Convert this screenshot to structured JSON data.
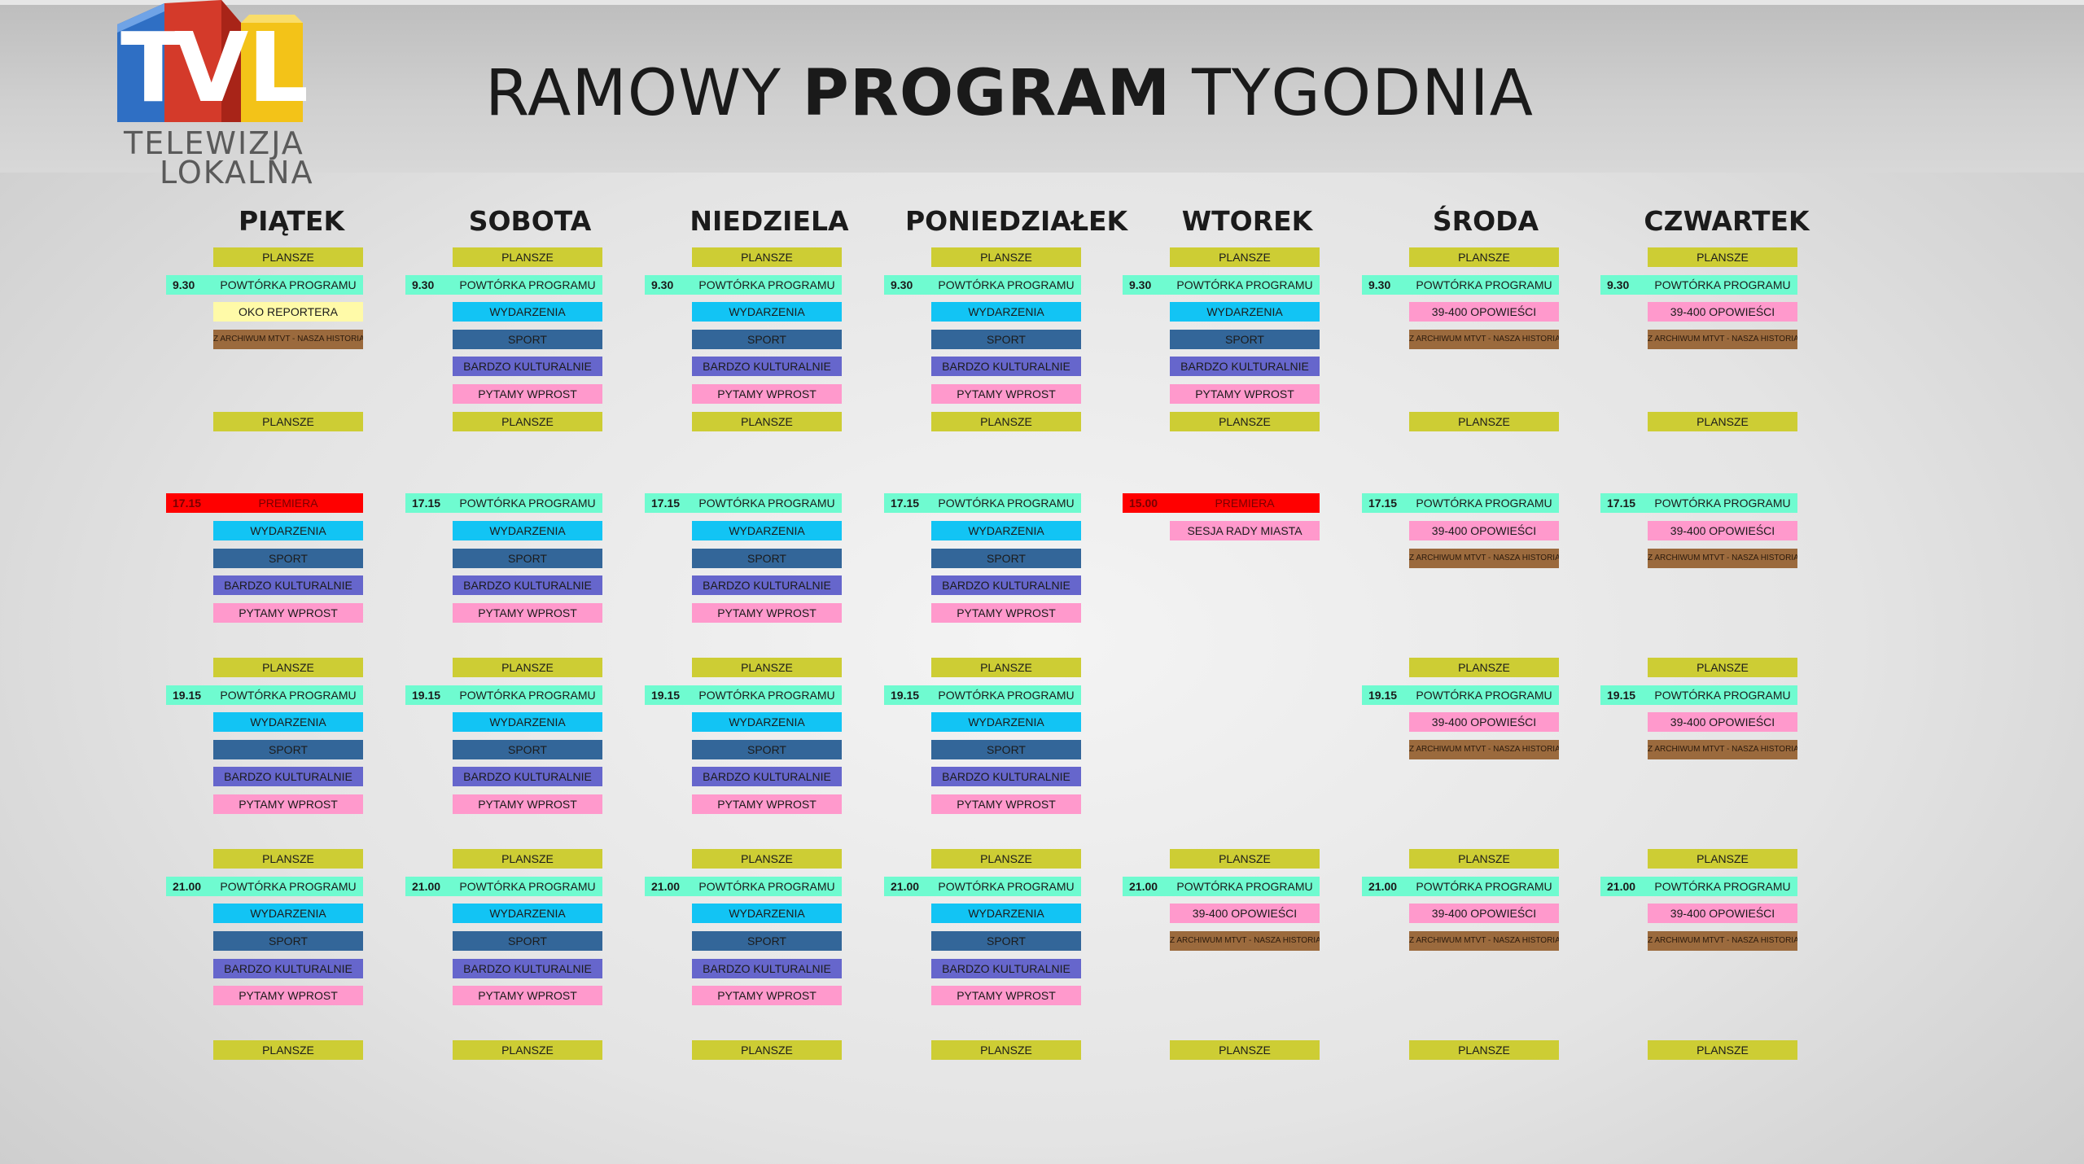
{
  "logo": {
    "letters": "TVL",
    "line1": "TELEWIZJA",
    "line2": "LOKALNA"
  },
  "title": {
    "normal1": "RAMOWY",
    "bold": "PROGRAM",
    "normal2": "TYGODNIA"
  },
  "colors": {
    "plansze": "#cdcd34",
    "powtorka": "#6ffbd0",
    "oko": "#fffaa8",
    "archiwum": "#9b6a3d",
    "wydarzenia": "#12c4f4",
    "sport": "#336699",
    "kulturalnie": "#6666cc",
    "wprost": "#ff99cc",
    "opowiesci": "#ff99cc",
    "premiera": "#ff0000",
    "sesja": "#ff99cc"
  },
  "days": [
    {
      "name": "PIĄTEK",
      "blocks": [
        {
          "row": 0,
          "text": "PLANSZE",
          "type": "plansze"
        },
        {
          "row": 1,
          "time": "9.30",
          "text": "POWTÓRKA  PROGRAMU",
          "type": "powtorka"
        },
        {
          "row": 2,
          "text": "OKO REPORTERA",
          "type": "oko"
        },
        {
          "row": 3,
          "text": "Z ARCHIWUM MTVT - NASZA HISTORIA",
          "type": "archiwum",
          "small": true
        },
        {
          "row": 6,
          "text": "PLANSZE",
          "type": "plansze"
        },
        {
          "row": 9,
          "time": "17.15",
          "text": "PREMIERA",
          "type": "premiera"
        },
        {
          "row": 10,
          "text": "WYDARZENIA",
          "type": "wydarzenia"
        },
        {
          "row": 11,
          "text": "SPORT",
          "type": "sport"
        },
        {
          "row": 12,
          "text": "BARDZO KULTURALNIE",
          "type": "kulturalnie"
        },
        {
          "row": 13,
          "text": "PYTAMY WPROST",
          "type": "wprost"
        },
        {
          "row": 15,
          "text": "PLANSZE",
          "type": "plansze"
        },
        {
          "row": 16,
          "time": "19.15",
          "text": "POWTÓRKA  PROGRAMU",
          "type": "powtorka"
        },
        {
          "row": 17,
          "text": "WYDARZENIA",
          "type": "wydarzenia"
        },
        {
          "row": 18,
          "text": "SPORT",
          "type": "sport"
        },
        {
          "row": 19,
          "text": "BARDZO KULTURALNIE",
          "type": "kulturalnie"
        },
        {
          "row": 20,
          "text": "PYTAMY WPROST",
          "type": "wprost"
        },
        {
          "row": 22,
          "text": "PLANSZE",
          "type": "plansze"
        },
        {
          "row": 23,
          "time": "21.00",
          "text": "POWTÓRKA  PROGRAMU",
          "type": "powtorka"
        },
        {
          "row": 24,
          "text": "WYDARZENIA",
          "type": "wydarzenia"
        },
        {
          "row": 25,
          "text": "SPORT",
          "type": "sport"
        },
        {
          "row": 26,
          "text": "BARDZO KULTURALNIE",
          "type": "kulturalnie"
        },
        {
          "row": 27,
          "text": "PYTAMY WPROST",
          "type": "wprost"
        },
        {
          "row": 29,
          "text": "PLANSZE",
          "type": "plansze"
        }
      ]
    },
    {
      "name": "SOBOTA",
      "blocks": [
        {
          "row": 0,
          "text": "PLANSZE",
          "type": "plansze"
        },
        {
          "row": 1,
          "time": "9.30",
          "text": "POWTÓRKA  PROGRAMU",
          "type": "powtorka"
        },
        {
          "row": 2,
          "text": "WYDARZENIA",
          "type": "wydarzenia"
        },
        {
          "row": 3,
          "text": "SPORT",
          "type": "sport"
        },
        {
          "row": 4,
          "text": "BARDZO KULTURALNIE",
          "type": "kulturalnie"
        },
        {
          "row": 5,
          "text": "PYTAMY WPROST",
          "type": "wprost"
        },
        {
          "row": 6,
          "text": "PLANSZE",
          "type": "plansze"
        },
        {
          "row": 9,
          "time": "17.15",
          "text": "POWTÓRKA  PROGRAMU",
          "type": "powtorka"
        },
        {
          "row": 10,
          "text": "WYDARZENIA",
          "type": "wydarzenia"
        },
        {
          "row": 11,
          "text": "SPORT",
          "type": "sport"
        },
        {
          "row": 12,
          "text": "BARDZO KULTURALNIE",
          "type": "kulturalnie"
        },
        {
          "row": 13,
          "text": "PYTAMY WPROST",
          "type": "wprost"
        },
        {
          "row": 15,
          "text": "PLANSZE",
          "type": "plansze"
        },
        {
          "row": 16,
          "time": "19.15",
          "text": "POWTÓRKA  PROGRAMU",
          "type": "powtorka"
        },
        {
          "row": 17,
          "text": "WYDARZENIA",
          "type": "wydarzenia"
        },
        {
          "row": 18,
          "text": "SPORT",
          "type": "sport"
        },
        {
          "row": 19,
          "text": "BARDZO KULTURALNIE",
          "type": "kulturalnie"
        },
        {
          "row": 20,
          "text": "PYTAMY WPROST",
          "type": "wprost"
        },
        {
          "row": 22,
          "text": "PLANSZE",
          "type": "plansze"
        },
        {
          "row": 23,
          "time": "21.00",
          "text": "POWTÓRKA  PROGRAMU",
          "type": "powtorka"
        },
        {
          "row": 24,
          "text": "WYDARZENIA",
          "type": "wydarzenia"
        },
        {
          "row": 25,
          "text": "SPORT",
          "type": "sport"
        },
        {
          "row": 26,
          "text": "BARDZO KULTURALNIE",
          "type": "kulturalnie"
        },
        {
          "row": 27,
          "text": "PYTAMY WPROST",
          "type": "wprost"
        },
        {
          "row": 29,
          "text": "PLANSZE",
          "type": "plansze"
        }
      ]
    },
    {
      "name": "NIEDZIELA",
      "blocks": [
        {
          "row": 0,
          "text": "PLANSZE",
          "type": "plansze"
        },
        {
          "row": 1,
          "time": "9.30",
          "text": "POWTÓRKA  PROGRAMU",
          "type": "powtorka"
        },
        {
          "row": 2,
          "text": "WYDARZENIA",
          "type": "wydarzenia"
        },
        {
          "row": 3,
          "text": "SPORT",
          "type": "sport"
        },
        {
          "row": 4,
          "text": "BARDZO KULTURALNIE",
          "type": "kulturalnie"
        },
        {
          "row": 5,
          "text": "PYTAMY WPROST",
          "type": "wprost"
        },
        {
          "row": 6,
          "text": "PLANSZE",
          "type": "plansze"
        },
        {
          "row": 9,
          "time": "17.15",
          "text": "POWTÓRKA  PROGRAMU",
          "type": "powtorka"
        },
        {
          "row": 10,
          "text": "WYDARZENIA",
          "type": "wydarzenia"
        },
        {
          "row": 11,
          "text": "SPORT",
          "type": "sport"
        },
        {
          "row": 12,
          "text": "BARDZO KULTURALNIE",
          "type": "kulturalnie"
        },
        {
          "row": 13,
          "text": "PYTAMY WPROST",
          "type": "wprost"
        },
        {
          "row": 15,
          "text": "PLANSZE",
          "type": "plansze"
        },
        {
          "row": 16,
          "time": "19.15",
          "text": "POWTÓRKA  PROGRAMU",
          "type": "powtorka"
        },
        {
          "row": 17,
          "text": "WYDARZENIA",
          "type": "wydarzenia"
        },
        {
          "row": 18,
          "text": "SPORT",
          "type": "sport"
        },
        {
          "row": 19,
          "text": "BARDZO KULTURALNIE",
          "type": "kulturalnie"
        },
        {
          "row": 20,
          "text": "PYTAMY WPROST",
          "type": "wprost"
        },
        {
          "row": 22,
          "text": "PLANSZE",
          "type": "plansze"
        },
        {
          "row": 23,
          "time": "21.00",
          "text": "POWTÓRKA  PROGRAMU",
          "type": "powtorka"
        },
        {
          "row": 24,
          "text": "WYDARZENIA",
          "type": "wydarzenia"
        },
        {
          "row": 25,
          "text": "SPORT",
          "type": "sport"
        },
        {
          "row": 26,
          "text": "BARDZO KULTURALNIE",
          "type": "kulturalnie"
        },
        {
          "row": 27,
          "text": "PYTAMY WPROST",
          "type": "wprost"
        },
        {
          "row": 29,
          "text": "PLANSZE",
          "type": "plansze"
        }
      ]
    },
    {
      "name": "PONIEDZIAŁEK",
      "blocks": [
        {
          "row": 0,
          "text": "PLANSZE",
          "type": "plansze"
        },
        {
          "row": 1,
          "time": "9.30",
          "text": "POWTÓRKA  PROGRAMU",
          "type": "powtorka"
        },
        {
          "row": 2,
          "text": "WYDARZENIA",
          "type": "wydarzenia"
        },
        {
          "row": 3,
          "text": "SPORT",
          "type": "sport"
        },
        {
          "row": 4,
          "text": "BARDZO KULTURALNIE",
          "type": "kulturalnie"
        },
        {
          "row": 5,
          "text": "PYTAMY WPROST",
          "type": "wprost"
        },
        {
          "row": 6,
          "text": "PLANSZE",
          "type": "plansze"
        },
        {
          "row": 9,
          "time": "17.15",
          "text": "POWTÓRKA  PROGRAMU",
          "type": "powtorka"
        },
        {
          "row": 10,
          "text": "WYDARZENIA",
          "type": "wydarzenia"
        },
        {
          "row": 11,
          "text": "SPORT",
          "type": "sport"
        },
        {
          "row": 12,
          "text": "BARDZO KULTURALNIE",
          "type": "kulturalnie"
        },
        {
          "row": 13,
          "text": "PYTAMY WPROST",
          "type": "wprost"
        },
        {
          "row": 15,
          "text": "PLANSZE",
          "type": "plansze"
        },
        {
          "row": 16,
          "time": "19.15",
          "text": "POWTÓRKA  PROGRAMU",
          "type": "powtorka"
        },
        {
          "row": 17,
          "text": "WYDARZENIA",
          "type": "wydarzenia"
        },
        {
          "row": 18,
          "text": "SPORT",
          "type": "sport"
        },
        {
          "row": 19,
          "text": "BARDZO KULTURALNIE",
          "type": "kulturalnie"
        },
        {
          "row": 20,
          "text": "PYTAMY WPROST",
          "type": "wprost"
        },
        {
          "row": 22,
          "text": "PLANSZE",
          "type": "plansze"
        },
        {
          "row": 23,
          "time": "21.00",
          "text": "POWTÓRKA  PROGRAMU",
          "type": "powtorka"
        },
        {
          "row": 24,
          "text": "WYDARZENIA",
          "type": "wydarzenia"
        },
        {
          "row": 25,
          "text": "SPORT",
          "type": "sport"
        },
        {
          "row": 26,
          "text": "BARDZO KULTURALNIE",
          "type": "kulturalnie"
        },
        {
          "row": 27,
          "text": "PYTAMY WPROST",
          "type": "wprost"
        },
        {
          "row": 29,
          "text": "PLANSZE",
          "type": "plansze"
        }
      ]
    },
    {
      "name": "WTOREK",
      "blocks": [
        {
          "row": 0,
          "text": "PLANSZE",
          "type": "plansze"
        },
        {
          "row": 1,
          "time": "9.30",
          "text": "POWTÓRKA  PROGRAMU",
          "type": "powtorka"
        },
        {
          "row": 2,
          "text": "WYDARZENIA",
          "type": "wydarzenia"
        },
        {
          "row": 3,
          "text": "SPORT",
          "type": "sport"
        },
        {
          "row": 4,
          "text": "BARDZO KULTURALNIE",
          "type": "kulturalnie"
        },
        {
          "row": 5,
          "text": "PYTAMY WPROST",
          "type": "wprost"
        },
        {
          "row": 6,
          "text": "PLANSZE",
          "type": "plansze"
        },
        {
          "row": 9,
          "time": "15.00",
          "text": "PREMIERA",
          "type": "premiera"
        },
        {
          "row": 10,
          "text": "SESJA RADY MIASTA",
          "type": "sesja"
        },
        {
          "row": 22,
          "text": "PLANSZE",
          "type": "plansze"
        },
        {
          "row": 23,
          "time": "21.00",
          "text": "POWTÓRKA  PROGRAMU",
          "type": "powtorka"
        },
        {
          "row": 24,
          "text": "39-400 OPOWIEŚCI",
          "type": "opowiesci"
        },
        {
          "row": 25,
          "text": "Z ARCHIWUM MTVT - NASZA HISTORIA",
          "type": "archiwum",
          "small": true
        },
        {
          "row": 29,
          "text": "PLANSZE",
          "type": "plansze"
        }
      ]
    },
    {
      "name": "ŚRODA",
      "blocks": [
        {
          "row": 0,
          "text": "PLANSZE",
          "type": "plansze"
        },
        {
          "row": 1,
          "time": "9.30",
          "text": "POWTÓRKA  PROGRAMU",
          "type": "powtorka"
        },
        {
          "row": 2,
          "text": "39-400 OPOWIEŚCI",
          "type": "opowiesci"
        },
        {
          "row": 3,
          "text": "Z ARCHIWUM MTVT - NASZA HISTORIA",
          "type": "archiwum",
          "small": true
        },
        {
          "row": 6,
          "text": "PLANSZE",
          "type": "plansze"
        },
        {
          "row": 9,
          "time": "17.15",
          "text": "POWTÓRKA  PROGRAMU",
          "type": "powtorka"
        },
        {
          "row": 10,
          "text": "39-400 OPOWIEŚCI",
          "type": "opowiesci"
        },
        {
          "row": 11,
          "text": "Z ARCHIWUM MTVT - NASZA HISTORIA",
          "type": "archiwum",
          "small": true
        },
        {
          "row": 15,
          "text": "PLANSZE",
          "type": "plansze"
        },
        {
          "row": 16,
          "time": "19.15",
          "text": "POWTÓRKA  PROGRAMU",
          "type": "powtorka"
        },
        {
          "row": 17,
          "text": "39-400 OPOWIEŚCI",
          "type": "opowiesci"
        },
        {
          "row": 18,
          "text": "Z ARCHIWUM MTVT - NASZA HISTORIA",
          "type": "archiwum",
          "small": true
        },
        {
          "row": 22,
          "text": "PLANSZE",
          "type": "plansze"
        },
        {
          "row": 23,
          "time": "21.00",
          "text": "POWTÓRKA  PROGRAMU",
          "type": "powtorka"
        },
        {
          "row": 24,
          "text": "39-400 OPOWIEŚCI",
          "type": "opowiesci"
        },
        {
          "row": 25,
          "text": "Z ARCHIWUM MTVT - NASZA HISTORIA",
          "type": "archiwum",
          "small": true
        },
        {
          "row": 29,
          "text": "PLANSZE",
          "type": "plansze"
        }
      ]
    },
    {
      "name": "CZWARTEK",
      "blocks": [
        {
          "row": 0,
          "text": "PLANSZE",
          "type": "plansze"
        },
        {
          "row": 1,
          "time": "9.30",
          "text": "POWTÓRKA  PROGRAMU",
          "type": "powtorka"
        },
        {
          "row": 2,
          "text": "39-400 OPOWIEŚCI",
          "type": "opowiesci"
        },
        {
          "row": 3,
          "text": "Z ARCHIWUM MTVT - NASZA HISTORIA",
          "type": "archiwum",
          "small": true
        },
        {
          "row": 6,
          "text": "PLANSZE",
          "type": "plansze"
        },
        {
          "row": 9,
          "time": "17.15",
          "text": "POWTÓRKA  PROGRAMU",
          "type": "powtorka"
        },
        {
          "row": 10,
          "text": "39-400 OPOWIEŚCI",
          "type": "opowiesci"
        },
        {
          "row": 11,
          "text": "Z ARCHIWUM MTVT - NASZA HISTORIA",
          "type": "archiwum",
          "small": true
        },
        {
          "row": 15,
          "text": "PLANSZE",
          "type": "plansze"
        },
        {
          "row": 16,
          "time": "19.15",
          "text": "POWTÓRKA  PROGRAMU",
          "type": "powtorka"
        },
        {
          "row": 17,
          "text": "39-400 OPOWIEŚCI",
          "type": "opowiesci"
        },
        {
          "row": 18,
          "text": "Z ARCHIWUM MTVT - NASZA HISTORIA",
          "type": "archiwum",
          "small": true
        },
        {
          "row": 22,
          "text": "PLANSZE",
          "type": "plansze"
        },
        {
          "row": 23,
          "time": "21.00",
          "text": "POWTÓRKA  PROGRAMU",
          "type": "powtorka"
        },
        {
          "row": 24,
          "text": "39-400 OPOWIEŚCI",
          "type": "opowiesci"
        },
        {
          "row": 25,
          "text": "Z ARCHIWUM MTVT - NASZA HISTORIA",
          "type": "archiwum",
          "small": true
        },
        {
          "row": 29,
          "text": "PLANSZE",
          "type": "plansze"
        }
      ]
    }
  ]
}
